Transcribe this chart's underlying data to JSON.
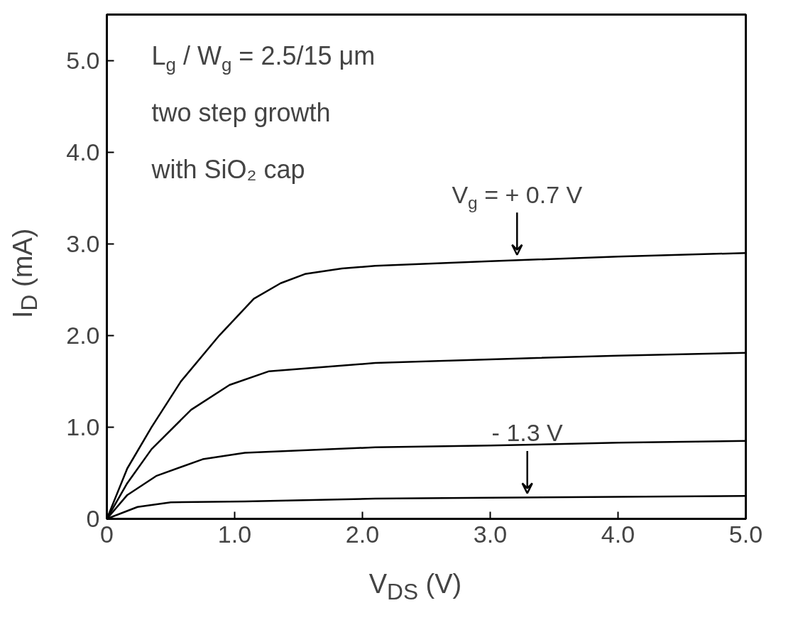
{
  "chart_data": {
    "type": "line",
    "xlabel": "V$_{DS}$ (V)",
    "ylabel": "I$_{D}$ (mA)",
    "xlim": [
      0,
      5.0
    ],
    "ylim": [
      0,
      5.5
    ],
    "xticks": [
      0,
      {
        "value": 1,
        "label": "1.0"
      },
      {
        "value": 2,
        "label": "2.0"
      },
      {
        "value": 3,
        "label": "3.0"
      },
      {
        "value": 4,
        "label": "4.0"
      },
      {
        "value": 5,
        "label": "5.0"
      }
    ],
    "yticks": [
      0,
      {
        "value": 1,
        "label": "1.0"
      },
      {
        "value": 2,
        "label": "2.0"
      },
      {
        "value": 3,
        "label": "3.0"
      },
      {
        "value": 4,
        "label": "4.0"
      },
      {
        "value": 5,
        "label": "5.0"
      }
    ],
    "grid": false,
    "marker": "none",
    "line_style": "solid",
    "series": [
      {
        "color": "#000000",
        "x": [
          0,
          0.16,
          0.35,
          0.58,
          0.88,
          1.15,
          1.36,
          1.55,
          1.84,
          2.1,
          3.0,
          4.0,
          5.0
        ],
        "values": [
          0,
          0.55,
          1.0,
          1.5,
          2.0,
          2.4,
          2.57,
          2.67,
          2.73,
          2.76,
          2.81,
          2.86,
          2.9
        ]
      },
      {
        "color": "#000000",
        "x": [
          0,
          0.16,
          0.35,
          0.66,
          0.96,
          1.27,
          2.1,
          3.0,
          4.0,
          5.0
        ],
        "values": [
          0,
          0.39,
          0.76,
          1.19,
          1.46,
          1.61,
          1.7,
          1.74,
          1.78,
          1.81
        ]
      },
      {
        "color": "#000000",
        "x": [
          0,
          0.16,
          0.39,
          0.75,
          1.08,
          2.1,
          3.0,
          4.0,
          5.0
        ],
        "values": [
          0,
          0.26,
          0.47,
          0.65,
          0.72,
          0.78,
          0.8,
          0.83,
          0.85
        ]
      },
      {
        "color": "#000000",
        "x": [
          0,
          0.24,
          0.5,
          1.08,
          2.1,
          3.0,
          4.0,
          5.0
        ],
        "values": [
          0,
          0.13,
          0.18,
          0.19,
          0.22,
          0.23,
          0.24,
          0.25
        ]
      }
    ],
    "annotations": [
      "L$_{g}$ / W$_{g}$ = 2.5/15 μm",
      "two step growth",
      "with SiO₂ cap",
      {
        "text": "V$_{g}$ = + 0.7 V",
        "x": 3.21,
        "y": 2.84
      },
      {
        "text": "- 1.3 V",
        "x": 3.29,
        "y": 0.24
      }
    ]
  }
}
